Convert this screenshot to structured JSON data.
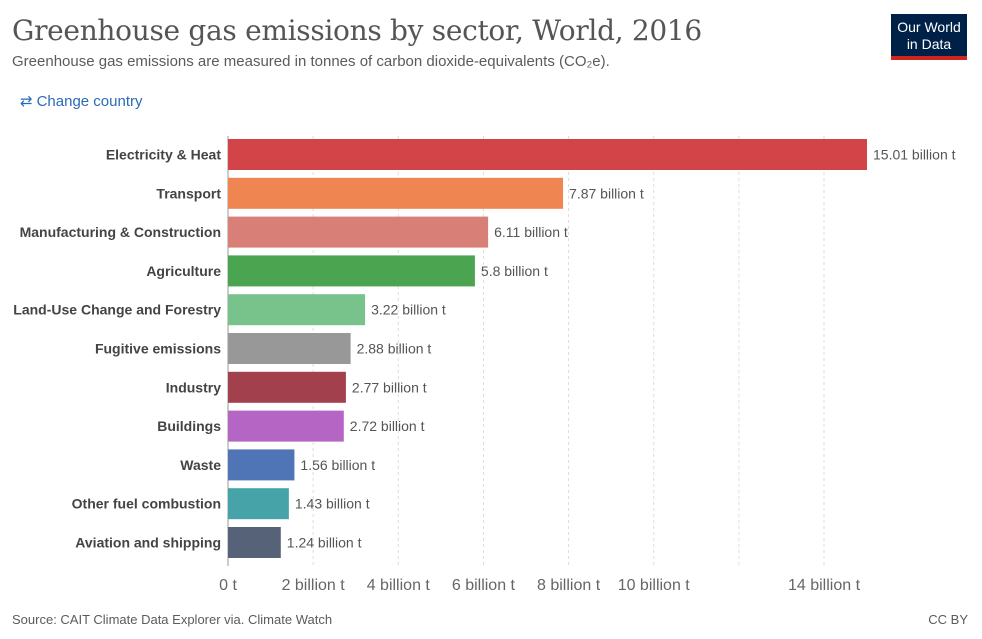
{
  "header": {
    "title": "Greenhouse gas emissions by sector, World, 2016",
    "subtitle": "Greenhouse gas emissions are measured in tonnes of carbon dioxide-equivalents (CO₂e).",
    "logo_line1": "Our World",
    "logo_line2": "in Data"
  },
  "controls": {
    "change_country_label": "Change country",
    "change_country_icon": "swap-arrows-icon"
  },
  "footer": {
    "source": "Source: CAIT Climate Data Explorer via. Climate Watch",
    "license": "CC BY"
  },
  "colors": {
    "logo_background": "#002147",
    "logo_accent": "#ce261e",
    "link": "#2a6bb8"
  },
  "chart_data": {
    "type": "bar",
    "orientation": "horizontal",
    "categories": [
      "Electricity & Heat",
      "Transport",
      "Manufacturing & Construction",
      "Agriculture",
      "Land-Use Change and Forestry",
      "Fugitive emissions",
      "Industry",
      "Buildings",
      "Waste",
      "Other fuel combustion",
      "Aviation and shipping"
    ],
    "values": [
      15.01,
      7.87,
      6.11,
      5.8,
      3.22,
      2.88,
      2.77,
      2.72,
      1.56,
      1.43,
      1.24
    ],
    "value_labels": [
      "15.01 billion t",
      "7.87 billion t",
      "6.11 billion t",
      "5.8 billion t",
      "3.22 billion t",
      "2.88 billion t",
      "2.77 billion t",
      "2.72 billion t",
      "1.56 billion t",
      "1.43 billion t",
      "1.24 billion t"
    ],
    "colors": [
      "#d24447",
      "#ef8550",
      "#d87f78",
      "#4ba550",
      "#78c38c",
      "#989898",
      "#a3404e",
      "#b565c4",
      "#4f75b7",
      "#46a4a8",
      "#566278"
    ],
    "x_ticks": [
      {
        "value": 0,
        "label": "0 t"
      },
      {
        "value": 2,
        "label": "2 billion t"
      },
      {
        "value": 4,
        "label": "4 billion t"
      },
      {
        "value": 6,
        "label": "6 billion t"
      },
      {
        "value": 8,
        "label": "8 billion t"
      },
      {
        "value": 10,
        "label": "10 billion t"
      },
      {
        "value": 12,
        "label": ""
      },
      {
        "value": 14,
        "label": "14 billion t"
      }
    ],
    "xlim": [
      0,
      15.01
    ],
    "unit": "billion t",
    "grid": true
  }
}
